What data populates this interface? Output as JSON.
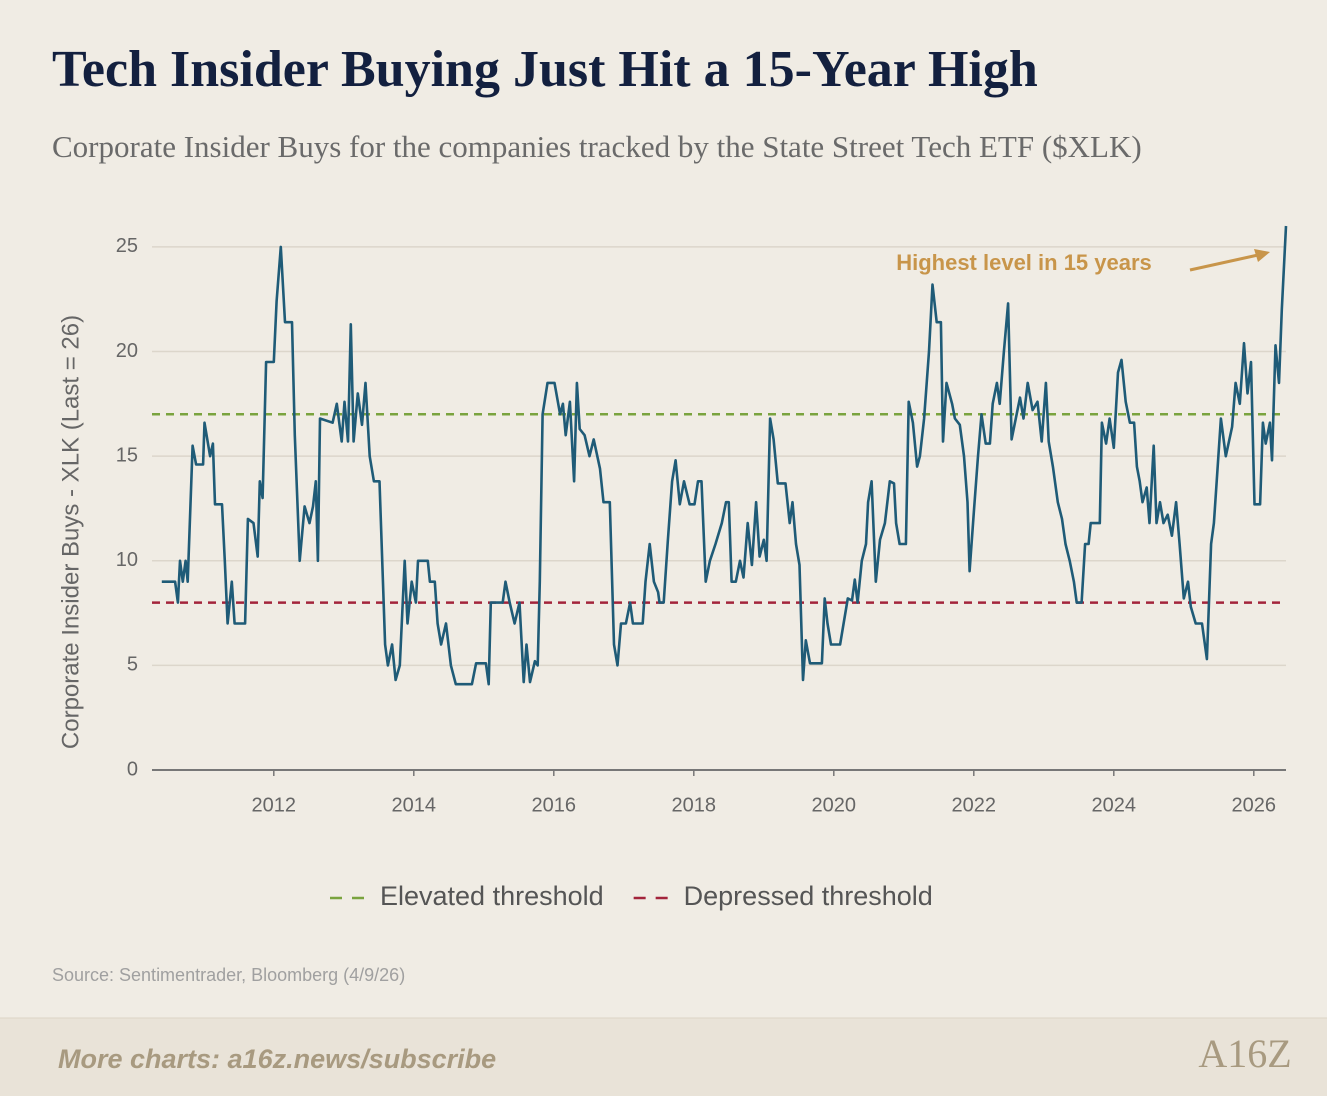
{
  "chart_data": {
    "type": "line",
    "title": "Tech Insider Buying Just Hit a 15-Year High",
    "subtitle": "Corporate Insider Buys for the companies tracked by the State Street Tech ETF ($XLK)",
    "y_label": "Corporate Insider Buys - XLK (Last = 26)",
    "annotation": "Highest level in 15 years",
    "source": "Source: Sentimentrader, Bloomberg (4/9/26)",
    "footer": "More charts: a16z.news/subscribe",
    "logo": "A16Z",
    "xlim": [
      2010.26,
      2026.46
    ],
    "ylim": [
      0,
      26
    ],
    "xticks": [
      2012,
      2014,
      2016,
      2018,
      2020,
      2022,
      2024,
      2026
    ],
    "yticks": [
      0,
      5,
      10,
      15,
      20,
      25
    ],
    "grid": true,
    "x": [
      2010.4,
      2010.59,
      2010.63,
      2010.66,
      2010.7,
      2010.74,
      2010.77,
      2010.84,
      2010.89,
      2010.99,
      2011.01,
      2011.09,
      2011.13,
      2011.16,
      2011.26,
      2011.3,
      2011.34,
      2011.4,
      2011.44,
      2011.59,
      2011.63,
      2011.71,
      2011.77,
      2011.8,
      2011.84,
      2011.89,
      2012.0,
      2012.04,
      2012.1,
      2012.16,
      2012.26,
      2012.3,
      2012.37,
      2012.44,
      2012.51,
      2012.56,
      2012.6,
      2012.63,
      2012.66,
      2012.84,
      2012.9,
      2012.97,
      2013.01,
      2013.06,
      2013.1,
      2013.14,
      2013.2,
      2013.26,
      2013.31,
      2013.37,
      2013.43,
      2013.51,
      2013.59,
      2013.63,
      2013.69,
      2013.74,
      2013.8,
      2013.87,
      2013.91,
      2013.97,
      2014.03,
      2014.06,
      2014.2,
      2014.23,
      2014.3,
      2014.34,
      2014.39,
      2014.46,
      2014.53,
      2014.6,
      2014.83,
      2014.89,
      2015.03,
      2015.07,
      2015.1,
      2015.27,
      2015.31,
      2015.37,
      2015.44,
      2015.51,
      2015.57,
      2015.61,
      2015.66,
      2015.73,
      2015.77,
      2015.8,
      2015.84,
      2015.91,
      2016.01,
      2016.09,
      2016.13,
      2016.17,
      2016.23,
      2016.29,
      2016.33,
      2016.37,
      2016.44,
      2016.51,
      2016.57,
      2016.66,
      2016.71,
      2016.8,
      2016.86,
      2016.91,
      2016.96,
      2017.03,
      2017.09,
      2017.13,
      2017.27,
      2017.31,
      2017.37,
      2017.43,
      2017.49,
      2017.51,
      2017.57,
      2017.63,
      2017.69,
      2017.74,
      2017.8,
      2017.86,
      2017.94,
      2018.01,
      2018.06,
      2018.11,
      2018.17,
      2018.23,
      2018.31,
      2018.4,
      2018.46,
      2018.5,
      2018.54,
      2018.6,
      2018.66,
      2018.71,
      2018.77,
      2018.83,
      2018.89,
      2018.94,
      2019.0,
      2019.04,
      2019.09,
      2019.14,
      2019.2,
      2019.31,
      2019.37,
      2019.41,
      2019.46,
      2019.51,
      2019.56,
      2019.6,
      2019.66,
      2019.83,
      2019.87,
      2019.91,
      2019.96,
      2020.09,
      2020.14,
      2020.2,
      2020.26,
      2020.3,
      2020.34,
      2020.4,
      2020.46,
      2020.49,
      2020.54,
      2020.6,
      2020.66,
      2020.73,
      2020.8,
      2020.86,
      2020.89,
      2020.94,
      2021.03,
      2021.07,
      2021.13,
      2021.19,
      2021.23,
      2021.29,
      2021.36,
      2021.41,
      2021.47,
      2021.53,
      2021.56,
      2021.61,
      2021.69,
      2021.73,
      2021.8,
      2021.86,
      2021.91,
      2021.94,
      2022.0,
      2022.06,
      2022.11,
      2022.17,
      2022.23,
      2022.27,
      2022.33,
      2022.37,
      2022.43,
      2022.49,
      2022.54,
      2022.6,
      2022.66,
      2022.71,
      2022.77,
      2022.84,
      2022.91,
      2022.97,
      2023.03,
      2023.07,
      2023.13,
      2023.2,
      2023.26,
      2023.31,
      2023.37,
      2023.43,
      2023.47,
      2023.54,
      2023.59,
      2023.64,
      2023.67,
      2023.8,
      2023.83,
      2023.89,
      2023.94,
      2024.0,
      2024.06,
      2024.11,
      2024.17,
      2024.23,
      2024.29,
      2024.33,
      2024.37,
      2024.41,
      2024.47,
      2024.51,
      2024.57,
      2024.61,
      2024.66,
      2024.71,
      2024.77,
      2024.83,
      2024.89,
      2024.94,
      2025.0,
      2025.06,
      2025.1,
      2025.17,
      2025.26,
      2025.33,
      2025.39,
      2025.43,
      2025.49,
      2025.53,
      2025.6,
      2025.69,
      2025.74,
      2025.8,
      2025.86,
      2025.91,
      2025.96,
      2026.01,
      2026.09,
      2026.13,
      2026.17,
      2026.23,
      2026.26,
      2026.31,
      2026.36,
      2026.4,
      2026.46
    ],
    "series": [
      {
        "color": "#1f5b77",
        "values": [
          9,
          9,
          8,
          10,
          9,
          10,
          9,
          15.5,
          14.6,
          14.6,
          16.6,
          15,
          15.6,
          12.7,
          12.7,
          10,
          7,
          9,
          7,
          7,
          12,
          11.8,
          10.2,
          13.8,
          13,
          19.5,
          19.5,
          22.4,
          25,
          21.4,
          21.4,
          16,
          10,
          12.6,
          11.8,
          12.6,
          13.8,
          10,
          16.8,
          16.6,
          17.5,
          15.7,
          17.6,
          15.7,
          21.3,
          15.7,
          18,
          16.5,
          18.5,
          15,
          13.8,
          13.8,
          6,
          5,
          6,
          4.3,
          5,
          10,
          7,
          9,
          8,
          10,
          10,
          9,
          9,
          7,
          6,
          7,
          5,
          4.1,
          4.1,
          5.1,
          5.1,
          4.1,
          8,
          8,
          9,
          8,
          7,
          8,
          4.2,
          6,
          4.2,
          5.2,
          5,
          9,
          17,
          18.5,
          18.5,
          17,
          17.5,
          16,
          17.6,
          13.8,
          18.5,
          16.3,
          16,
          15,
          15.8,
          14.4,
          12.8,
          12.8,
          6,
          5,
          7,
          7,
          8,
          7,
          7,
          9,
          10.8,
          9,
          8.5,
          8,
          8,
          11,
          13.8,
          14.8,
          12.7,
          13.8,
          12.7,
          12.7,
          13.8,
          13.8,
          9,
          10,
          10.8,
          11.8,
          12.8,
          12.8,
          9,
          9,
          10,
          9.2,
          11.8,
          9.8,
          12.8,
          10.2,
          11,
          10,
          16.8,
          15.8,
          13.7,
          13.7,
          11.8,
          12.8,
          10.8,
          9.8,
          4.3,
          6.2,
          5.1,
          5.1,
          8.2,
          7,
          6,
          6,
          7,
          8.2,
          8.1,
          9.1,
          8,
          10,
          10.8,
          12.8,
          13.8,
          9,
          11,
          11.8,
          13.8,
          13.7,
          11.8,
          10.8,
          10.8,
          17.6,
          16.6,
          14.5,
          15,
          16.8,
          20,
          23.2,
          21.4,
          21.4,
          15.7,
          18.5,
          17.5,
          16.8,
          16.5,
          15,
          12.8,
          9.5,
          12.3,
          15,
          17,
          15.6,
          15.6,
          17.5,
          18.5,
          17.5,
          20,
          22.3,
          15.8,
          16.8,
          17.8,
          16.8,
          18.5,
          17.2,
          17.6,
          15.7,
          18.5,
          15.7,
          14.5,
          12.8,
          12,
          10.8,
          10,
          9,
          8,
          8,
          10.8,
          10.8,
          11.8,
          11.8,
          16.6,
          15.6,
          16.8,
          15.4,
          19,
          19.6,
          17.6,
          16.6,
          16.6,
          14.5,
          13.8,
          12.8,
          13.5,
          11.8,
          15.5,
          11.8,
          12.8,
          11.8,
          12.2,
          11.2,
          12.8,
          10.8,
          8.2,
          9,
          7.8,
          7,
          7,
          5.3,
          10.8,
          11.8,
          14.8,
          16.8,
          15,
          16.4,
          18.5,
          17.5,
          20.4,
          18,
          19.5,
          12.7,
          12.7,
          16.6,
          15.6,
          16.6,
          14.8,
          20.3,
          18.5,
          22,
          26
        ]
      }
    ],
    "thresholds": [
      {
        "name": "Elevated threshold",
        "value": 17,
        "color": "#7aa33e"
      },
      {
        "name": "Depressed threshold",
        "value": 8,
        "color": "#a3243b"
      }
    ]
  }
}
